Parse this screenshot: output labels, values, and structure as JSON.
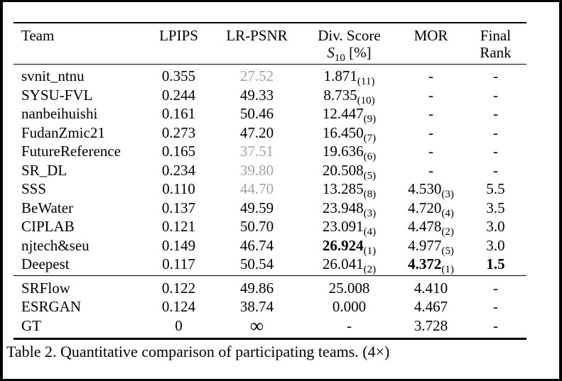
{
  "colors": {
    "text": "#000000",
    "muted_metric": "#a3a3a3",
    "background": "#ffffff",
    "frame_border": "#000000"
  },
  "table": {
    "caption": "Table 2. Quantitative comparison of participating teams. (4×)",
    "header": {
      "team": "Team",
      "lpips": "LPIPS",
      "lr_psnr": "LR-PSNR",
      "div_score_line1": "Div. Score",
      "div_score_symbol": "S",
      "div_score_subscript": "10",
      "div_score_unit": "[%]",
      "mor": "MOR",
      "final_line1": "Final",
      "final_line2": "Rank"
    },
    "rows": [
      {
        "team": "svnit_ntnu",
        "lpips": "0.355",
        "lr_psnr": "27.52",
        "div": "1.871",
        "div_rank": "(11)",
        "mor": "-",
        "final": "-"
      },
      {
        "team": "SYSU-FVL",
        "lpips": "0.244",
        "lr_psnr": "49.33",
        "div": "8.735",
        "div_rank": "(10)",
        "mor": "-",
        "final": "-"
      },
      {
        "team": "nanbeihuishi",
        "lpips": "0.161",
        "lr_psnr": "50.46",
        "div": "12.447",
        "div_rank": "(9)",
        "mor": "-",
        "final": "-"
      },
      {
        "team": "FudanZmic21",
        "lpips": "0.273",
        "lr_psnr": "47.20",
        "div": "16.450",
        "div_rank": "(7)",
        "mor": "-",
        "final": "-"
      },
      {
        "team": "FutureReference",
        "lpips": "0.165",
        "lr_psnr": "37.51",
        "div": "19.636",
        "div_rank": "(6)",
        "mor": "-",
        "final": "-"
      },
      {
        "team": "SR_DL",
        "lpips": "0.234",
        "lr_psnr": "39.80",
        "div": "20.508",
        "div_rank": "(5)",
        "mor": "-",
        "final": "-"
      },
      {
        "team": "SSS",
        "lpips": "0.110",
        "lr_psnr": "44.70",
        "div": "13.285",
        "div_rank": "(8)",
        "mor": "4.530",
        "mor_rank": "(3)",
        "final": "5.5"
      },
      {
        "team": "BeWater",
        "lpips": "0.137",
        "lr_psnr": "49.59",
        "div": "23.948",
        "div_rank": "(3)",
        "mor": "4.720",
        "mor_rank": "(4)",
        "final": "3.5"
      },
      {
        "team": "CIPLAB",
        "lpips": "0.121",
        "lr_psnr": "50.70",
        "div": "23.091",
        "div_rank": "(4)",
        "mor": "4.478",
        "mor_rank": "(2)",
        "final": "3.0"
      },
      {
        "team": "njtech&seu",
        "lpips": "0.149",
        "lr_psnr": "46.74",
        "div": "26.924",
        "div_rank": "(1)",
        "mor": "4.977",
        "mor_rank": "(5)",
        "final": "3.0"
      },
      {
        "team": "Deepest",
        "lpips": "0.117",
        "lr_psnr": "50.54",
        "div": "26.041",
        "div_rank": "(2)",
        "mor": "4.372",
        "mor_rank": "(1)",
        "final": "1.5"
      }
    ],
    "baseline_rows": [
      {
        "team": "SRFlow",
        "lpips": "0.122",
        "lr_psnr": "49.86",
        "div": "25.008",
        "mor": "4.410",
        "final": "-"
      },
      {
        "team": "ESRGAN",
        "lpips": "0.124",
        "lr_psnr": "38.74",
        "div": "0.000",
        "mor": "4.467",
        "final": "-"
      },
      {
        "team": "GT",
        "lpips": "0",
        "lr_psnr": "∞",
        "div": "-",
        "mor": "3.728",
        "final": "-"
      }
    ]
  }
}
